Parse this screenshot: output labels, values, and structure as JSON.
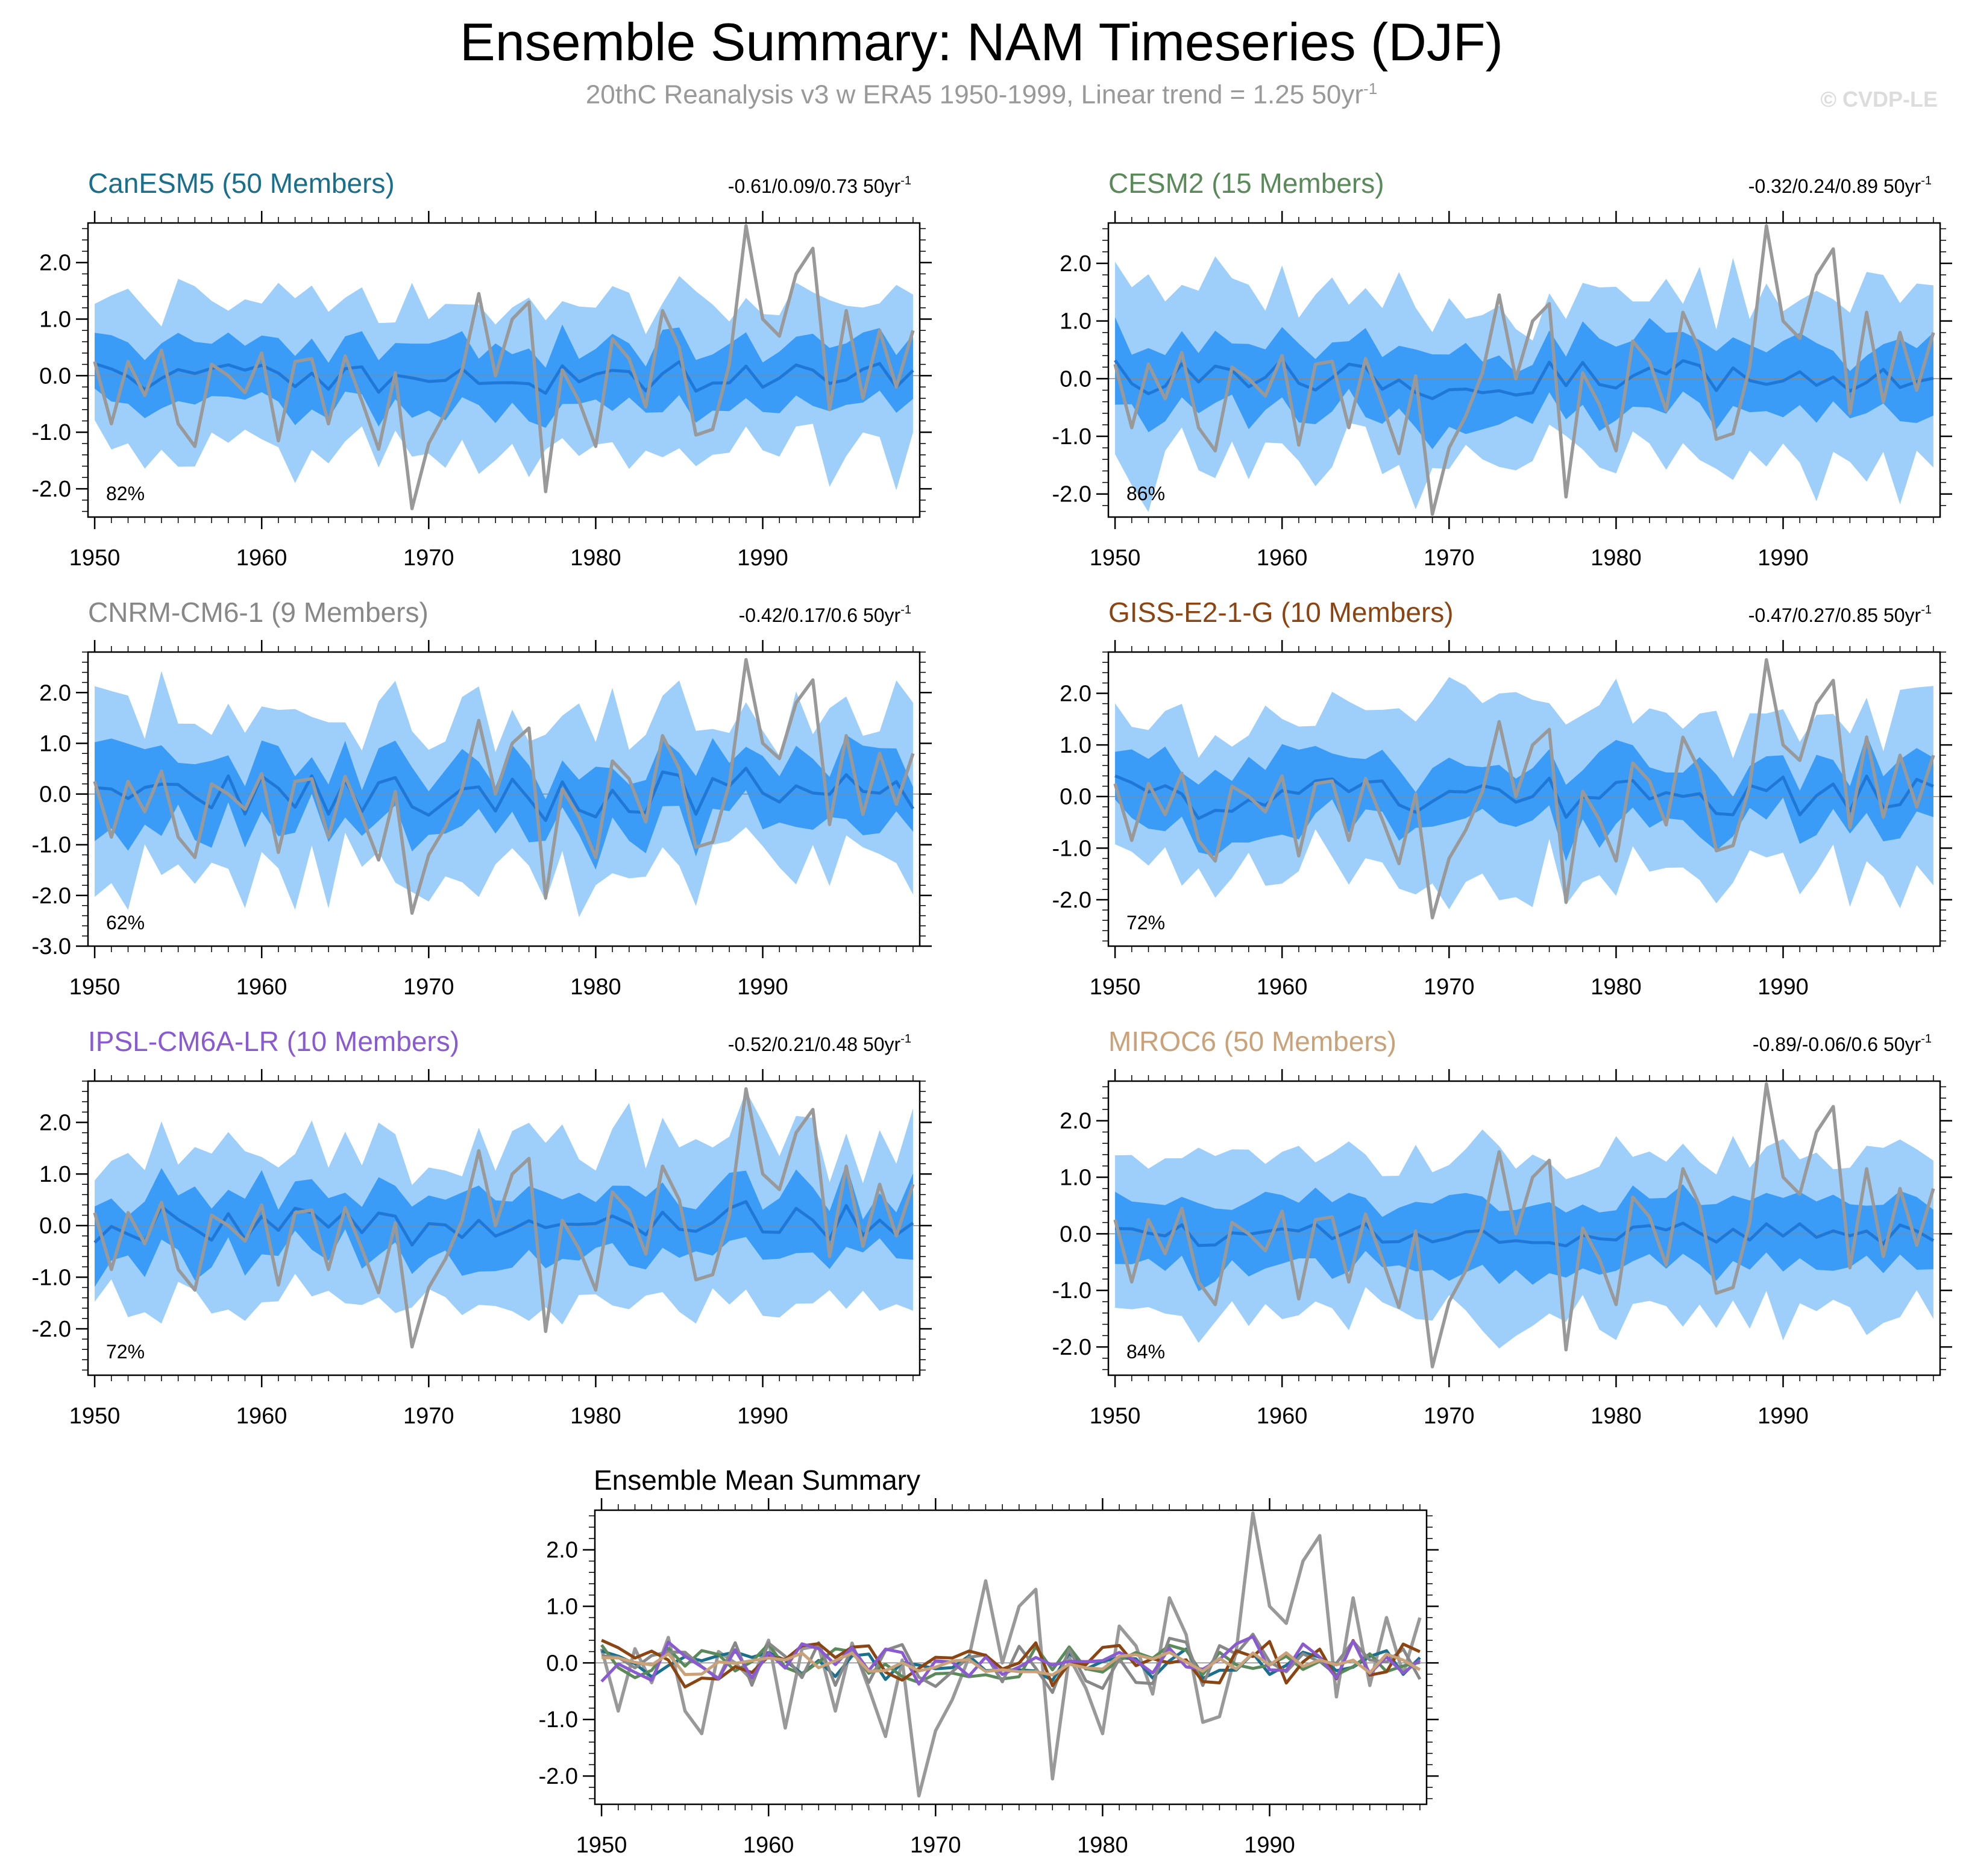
{
  "title": "Ensemble Summary: NAM Timeseries (DJF)",
  "subtitle": "20thC Reanalysis v3 w ERA5 1950-1999, Linear trend = 1.25 50yr",
  "subtitle_exponent": "-1",
  "watermark": "© CVDP-LE",
  "colors": {
    "outer_band": "#9dcffa",
    "inner_band": "#3a9cf7",
    "ens_mean": "#1f78d8",
    "observed": "#999999",
    "zero_line": "#888888"
  },
  "chart_data": [
    {
      "id": "canesm5",
      "type": "line",
      "title": "CanESM5 (50 Members)",
      "title_color": "#1a6f8c",
      "stats": "-0.61/0.09/0.73 50yr",
      "stats_exponent": "-1",
      "pct_label": "82%",
      "ylim": [
        -2.5,
        2.7
      ],
      "yticks": [
        2.0,
        1.0,
        0.0,
        -1.0,
        -2.0
      ],
      "ytick_labels": [
        "2.0",
        "1.0",
        "0.0",
        "-1.0",
        "-2.0"
      ],
      "xticks": [
        1950,
        1960,
        1970,
        1980,
        1990
      ],
      "xtick_labels": [
        "1950",
        "1960",
        "1970",
        "1980",
        "1990"
      ],
      "mean_amp": 0.25,
      "inner_half": 0.55,
      "outer_half": 1.35,
      "spread_var": 0.25,
      "seed": 11
    },
    {
      "id": "cesm2",
      "type": "line",
      "title": "CESM2 (15 Members)",
      "title_color": "#5a8a5a",
      "stats": "-0.32/0.24/0.89 50yr",
      "stats_exponent": "-1",
      "pct_label": "86%",
      "ylim": [
        -2.4,
        2.7
      ],
      "yticks": [
        2.0,
        1.0,
        0.0,
        -1.0,
        -2.0
      ],
      "ytick_labels": [
        "2.0",
        "1.0",
        "0.0",
        "-1.0",
        "-2.0"
      ],
      "xticks": [
        1950,
        1960,
        1970,
        1980,
        1990
      ],
      "xtick_labels": [
        "1950",
        "1960",
        "1970",
        "1980",
        "1990"
      ],
      "mean_amp": 0.35,
      "inner_half": 0.6,
      "outer_half": 1.45,
      "spread_var": 0.35,
      "seed": 23
    },
    {
      "id": "cnrm",
      "type": "line",
      "title": "CNRM-CM6-1 (9 Members)",
      "title_color": "#888888",
      "stats": "-0.42/0.17/0.6 50yr",
      "stats_exponent": "-1",
      "pct_label": "62%",
      "ylim": [
        -3.0,
        2.8
      ],
      "yticks": [
        2.0,
        1.0,
        0.0,
        -1.0,
        -2.0,
        -3.0
      ],
      "ytick_labels": [
        "2.0",
        "1.0",
        "0.0",
        "-1.0",
        "-2.0",
        "-3.0"
      ],
      "xticks": [
        1950,
        1960,
        1970,
        1980,
        1990
      ],
      "xtick_labels": [
        "1950",
        "1960",
        "1970",
        "1980",
        "1990"
      ],
      "mean_amp": 0.4,
      "inner_half": 0.65,
      "outer_half": 1.6,
      "spread_var": 0.45,
      "seed": 37
    },
    {
      "id": "giss",
      "type": "line",
      "title": "GISS-E2-1-G (10 Members)",
      "title_color": "#8b4513",
      "stats": "-0.47/0.27/0.85 50yr",
      "stats_exponent": "-1",
      "pct_label": "72%",
      "ylim": [
        -2.9,
        2.8
      ],
      "yticks": [
        2.0,
        1.0,
        0.0,
        -1.0,
        -2.0
      ],
      "ytick_labels": [
        "2.0",
        "1.0",
        "0.0",
        "-1.0",
        "-2.0"
      ],
      "xticks": [
        1950,
        1960,
        1970,
        1980,
        1990
      ],
      "xtick_labels": [
        "1950",
        "1960",
        "1970",
        "1980",
        "1990"
      ],
      "mean_amp": 0.4,
      "inner_half": 0.6,
      "outer_half": 1.55,
      "spread_var": 0.4,
      "seed": 41
    },
    {
      "id": "ipsl",
      "type": "line",
      "title": "IPSL-CM6A-LR (10 Members)",
      "title_color": "#8a5ad0",
      "stats": "-0.52/0.21/0.48 50yr",
      "stats_exponent": "-1",
      "pct_label": "72%",
      "ylim": [
        -2.9,
        2.8
      ],
      "yticks": [
        2.0,
        1.0,
        0.0,
        -1.0,
        -2.0
      ],
      "ytick_labels": [
        "2.0",
        "1.0",
        "0.0",
        "-1.0",
        "-2.0"
      ],
      "xticks": [
        1950,
        1960,
        1970,
        1980,
        1990
      ],
      "xtick_labels": [
        "1950",
        "1960",
        "1970",
        "1980",
        "1990"
      ],
      "mean_amp": 0.35,
      "inner_half": 0.62,
      "outer_half": 1.55,
      "spread_var": 0.4,
      "seed": 53
    },
    {
      "id": "miroc6",
      "type": "line",
      "title": "MIROC6 (50 Members)",
      "title_color": "#c9a27a",
      "stats": "-0.89/-0.06/0.6 50yr",
      "stats_exponent": "-1",
      "pct_label": "84%",
      "ylim": [
        -2.5,
        2.7
      ],
      "yticks": [
        2.0,
        1.0,
        0.0,
        -1.0,
        -2.0
      ],
      "ytick_labels": [
        "2.0",
        "1.0",
        "0.0",
        "-1.0",
        "-2.0"
      ],
      "xticks": [
        1950,
        1960,
        1970,
        1980,
        1990
      ],
      "xtick_labels": [
        "1950",
        "1960",
        "1970",
        "1980",
        "1990"
      ],
      "mean_amp": 0.2,
      "inner_half": 0.62,
      "outer_half": 1.4,
      "spread_var": 0.2,
      "seed": 67
    },
    {
      "id": "ensemble-mean",
      "type": "line",
      "title": "Ensemble Mean Summary",
      "title_color": "#000000",
      "ylim": [
        -2.5,
        2.7
      ],
      "yticks": [
        2.0,
        1.0,
        0.0,
        -1.0,
        -2.0
      ],
      "ytick_labels": [
        "2.0",
        "1.0",
        "0.0",
        "-1.0",
        "-2.0"
      ],
      "xticks": [
        1950,
        1960,
        1970,
        1980,
        1990
      ],
      "xtick_labels": [
        "1950",
        "1960",
        "1970",
        "1980",
        "1990"
      ],
      "series_colors": [
        "#1a6f8c",
        "#5a8a5a",
        "#888888",
        "#8b4513",
        "#8a5ad0",
        "#c9a27a"
      ]
    }
  ],
  "observed": {
    "name": "20thC Reanalysis v3 w ERA5",
    "x_start": 1950,
    "values": [
      0.25,
      -0.85,
      0.25,
      -0.35,
      0.45,
      -0.85,
      -1.25,
      0.2,
      0.0,
      -0.3,
      0.4,
      -1.15,
      0.25,
      0.3,
      -0.85,
      0.35,
      -0.45,
      -1.3,
      0.05,
      -2.35,
      -1.2,
      -0.65,
      0.1,
      1.45,
      0.0,
      1.0,
      1.3,
      -2.05,
      0.1,
      -0.45,
      -1.25,
      0.65,
      0.3,
      -0.55,
      1.15,
      0.5,
      -1.05,
      -0.95,
      0.2,
      2.65,
      1.0,
      0.7,
      1.8,
      2.25,
      -0.6,
      1.15,
      -0.4,
      0.8,
      -0.2,
      0.8
    ]
  }
}
